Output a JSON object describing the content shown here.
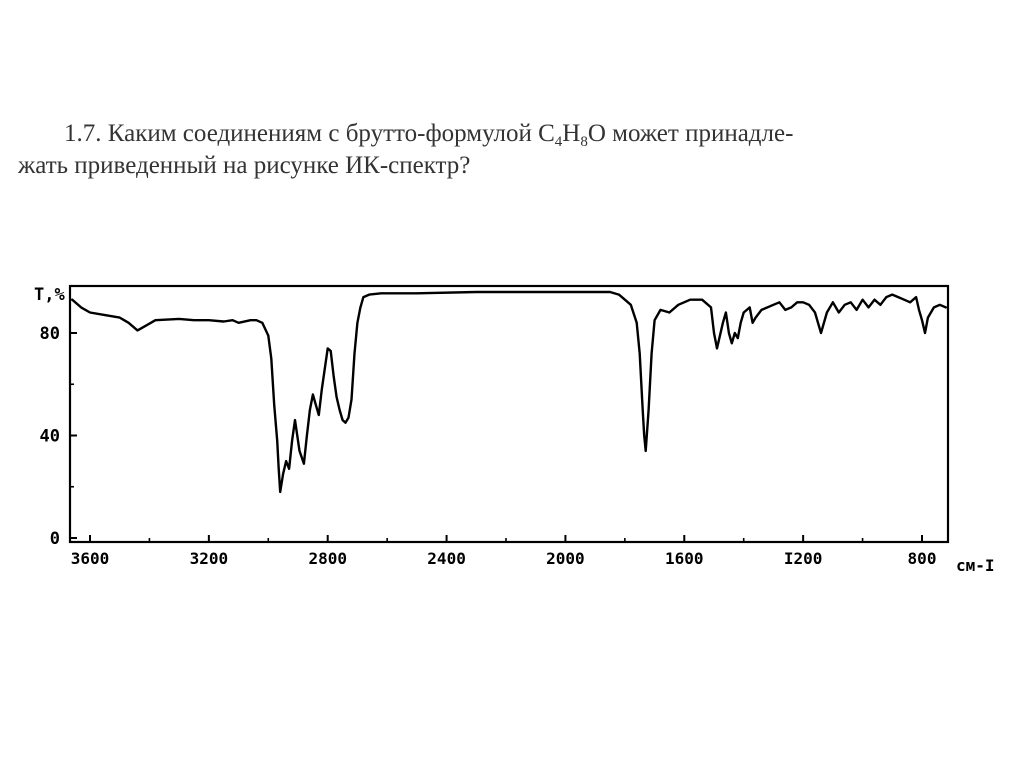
{
  "question": {
    "number": "1.7.",
    "text_before_formula": "Каким соединениям с брутто-формулой ",
    "formula": [
      {
        "el": "C",
        "sub": "4"
      },
      {
        "el": "H",
        "sub": "8"
      },
      {
        "el": "O",
        "sub": ""
      }
    ],
    "text_line1_after_formula": " может принадле-",
    "text_line2": "жать приведенный на рисунке ИК-спектр?"
  },
  "chart_data": {
    "type": "line",
    "title": "",
    "ylabel": "T,%",
    "xlabel": "см-I",
    "x_ticks": [
      3600,
      3200,
      2800,
      2400,
      2000,
      1600,
      1200,
      800
    ],
    "x_tick_labels": [
      "3600",
      "3200",
      "2800",
      "2400",
      "2000",
      "1600",
      "I200",
      "800"
    ],
    "y_ticks": [
      0,
      40,
      80
    ],
    "y_tick_labels": [
      "0",
      "40",
      "80"
    ],
    "xlim": [
      3660,
      700
    ],
    "ylim": [
      0,
      100
    ],
    "x_reversed": true,
    "grid": false,
    "series": [
      {
        "name": "",
        "color": "#000000",
        "x": [
          3660,
          3630,
          3600,
          3550,
          3500,
          3470,
          3440,
          3410,
          3380,
          3300,
          3250,
          3200,
          3150,
          3120,
          3100,
          3060,
          3040,
          3020,
          3000,
          2990,
          2980,
          2970,
          2965,
          2960,
          2950,
          2940,
          2930,
          2920,
          2910,
          2895,
          2880,
          2870,
          2860,
          2850,
          2840,
          2830,
          2820,
          2800,
          2790,
          2780,
          2770,
          2760,
          2750,
          2740,
          2730,
          2720,
          2710,
          2700,
          2690,
          2680,
          2660,
          2620,
          2500,
          2300,
          2000,
          1850,
          1820,
          1800,
          1780,
          1760,
          1750,
          1740,
          1735,
          1730,
          1720,
          1710,
          1700,
          1680,
          1650,
          1620,
          1580,
          1540,
          1510,
          1500,
          1490,
          1470,
          1460,
          1450,
          1440,
          1430,
          1420,
          1410,
          1400,
          1380,
          1370,
          1360,
          1340,
          1300,
          1280,
          1260,
          1240,
          1220,
          1200,
          1180,
          1160,
          1150,
          1140,
          1120,
          1100,
          1080,
          1060,
          1040,
          1020,
          1000,
          980,
          960,
          940,
          920,
          900,
          880,
          860,
          840,
          820,
          810,
          800,
          790,
          780,
          760,
          740,
          720
        ],
        "y": [
          93,
          90,
          88,
          87,
          86,
          84,
          81,
          83,
          85,
          85.5,
          85,
          85,
          84.5,
          85,
          84,
          85,
          85,
          84,
          79,
          70,
          52,
          38,
          27,
          18,
          25,
          30,
          27,
          38,
          46,
          34,
          29,
          40,
          50,
          56,
          52,
          48,
          58,
          74,
          73,
          63,
          55,
          50,
          46,
          45,
          47,
          54,
          72,
          84,
          90,
          94,
          95,
          95.5,
          95.5,
          96,
          96,
          96,
          95,
          93,
          91,
          84,
          72,
          50,
          40,
          34,
          50,
          72,
          85,
          89,
          88,
          91,
          93,
          93,
          90,
          80,
          74,
          84,
          88,
          80,
          76,
          80,
          78,
          84,
          88,
          90,
          84,
          86,
          89,
          91,
          92,
          89,
          90,
          92,
          92,
          91,
          88,
          84,
          80,
          88,
          92,
          88,
          91,
          92,
          89,
          93,
          90,
          93,
          91,
          94,
          95,
          94,
          93,
          92,
          94,
          89,
          85,
          80,
          86,
          90,
          91,
          90
        ]
      }
    ]
  }
}
